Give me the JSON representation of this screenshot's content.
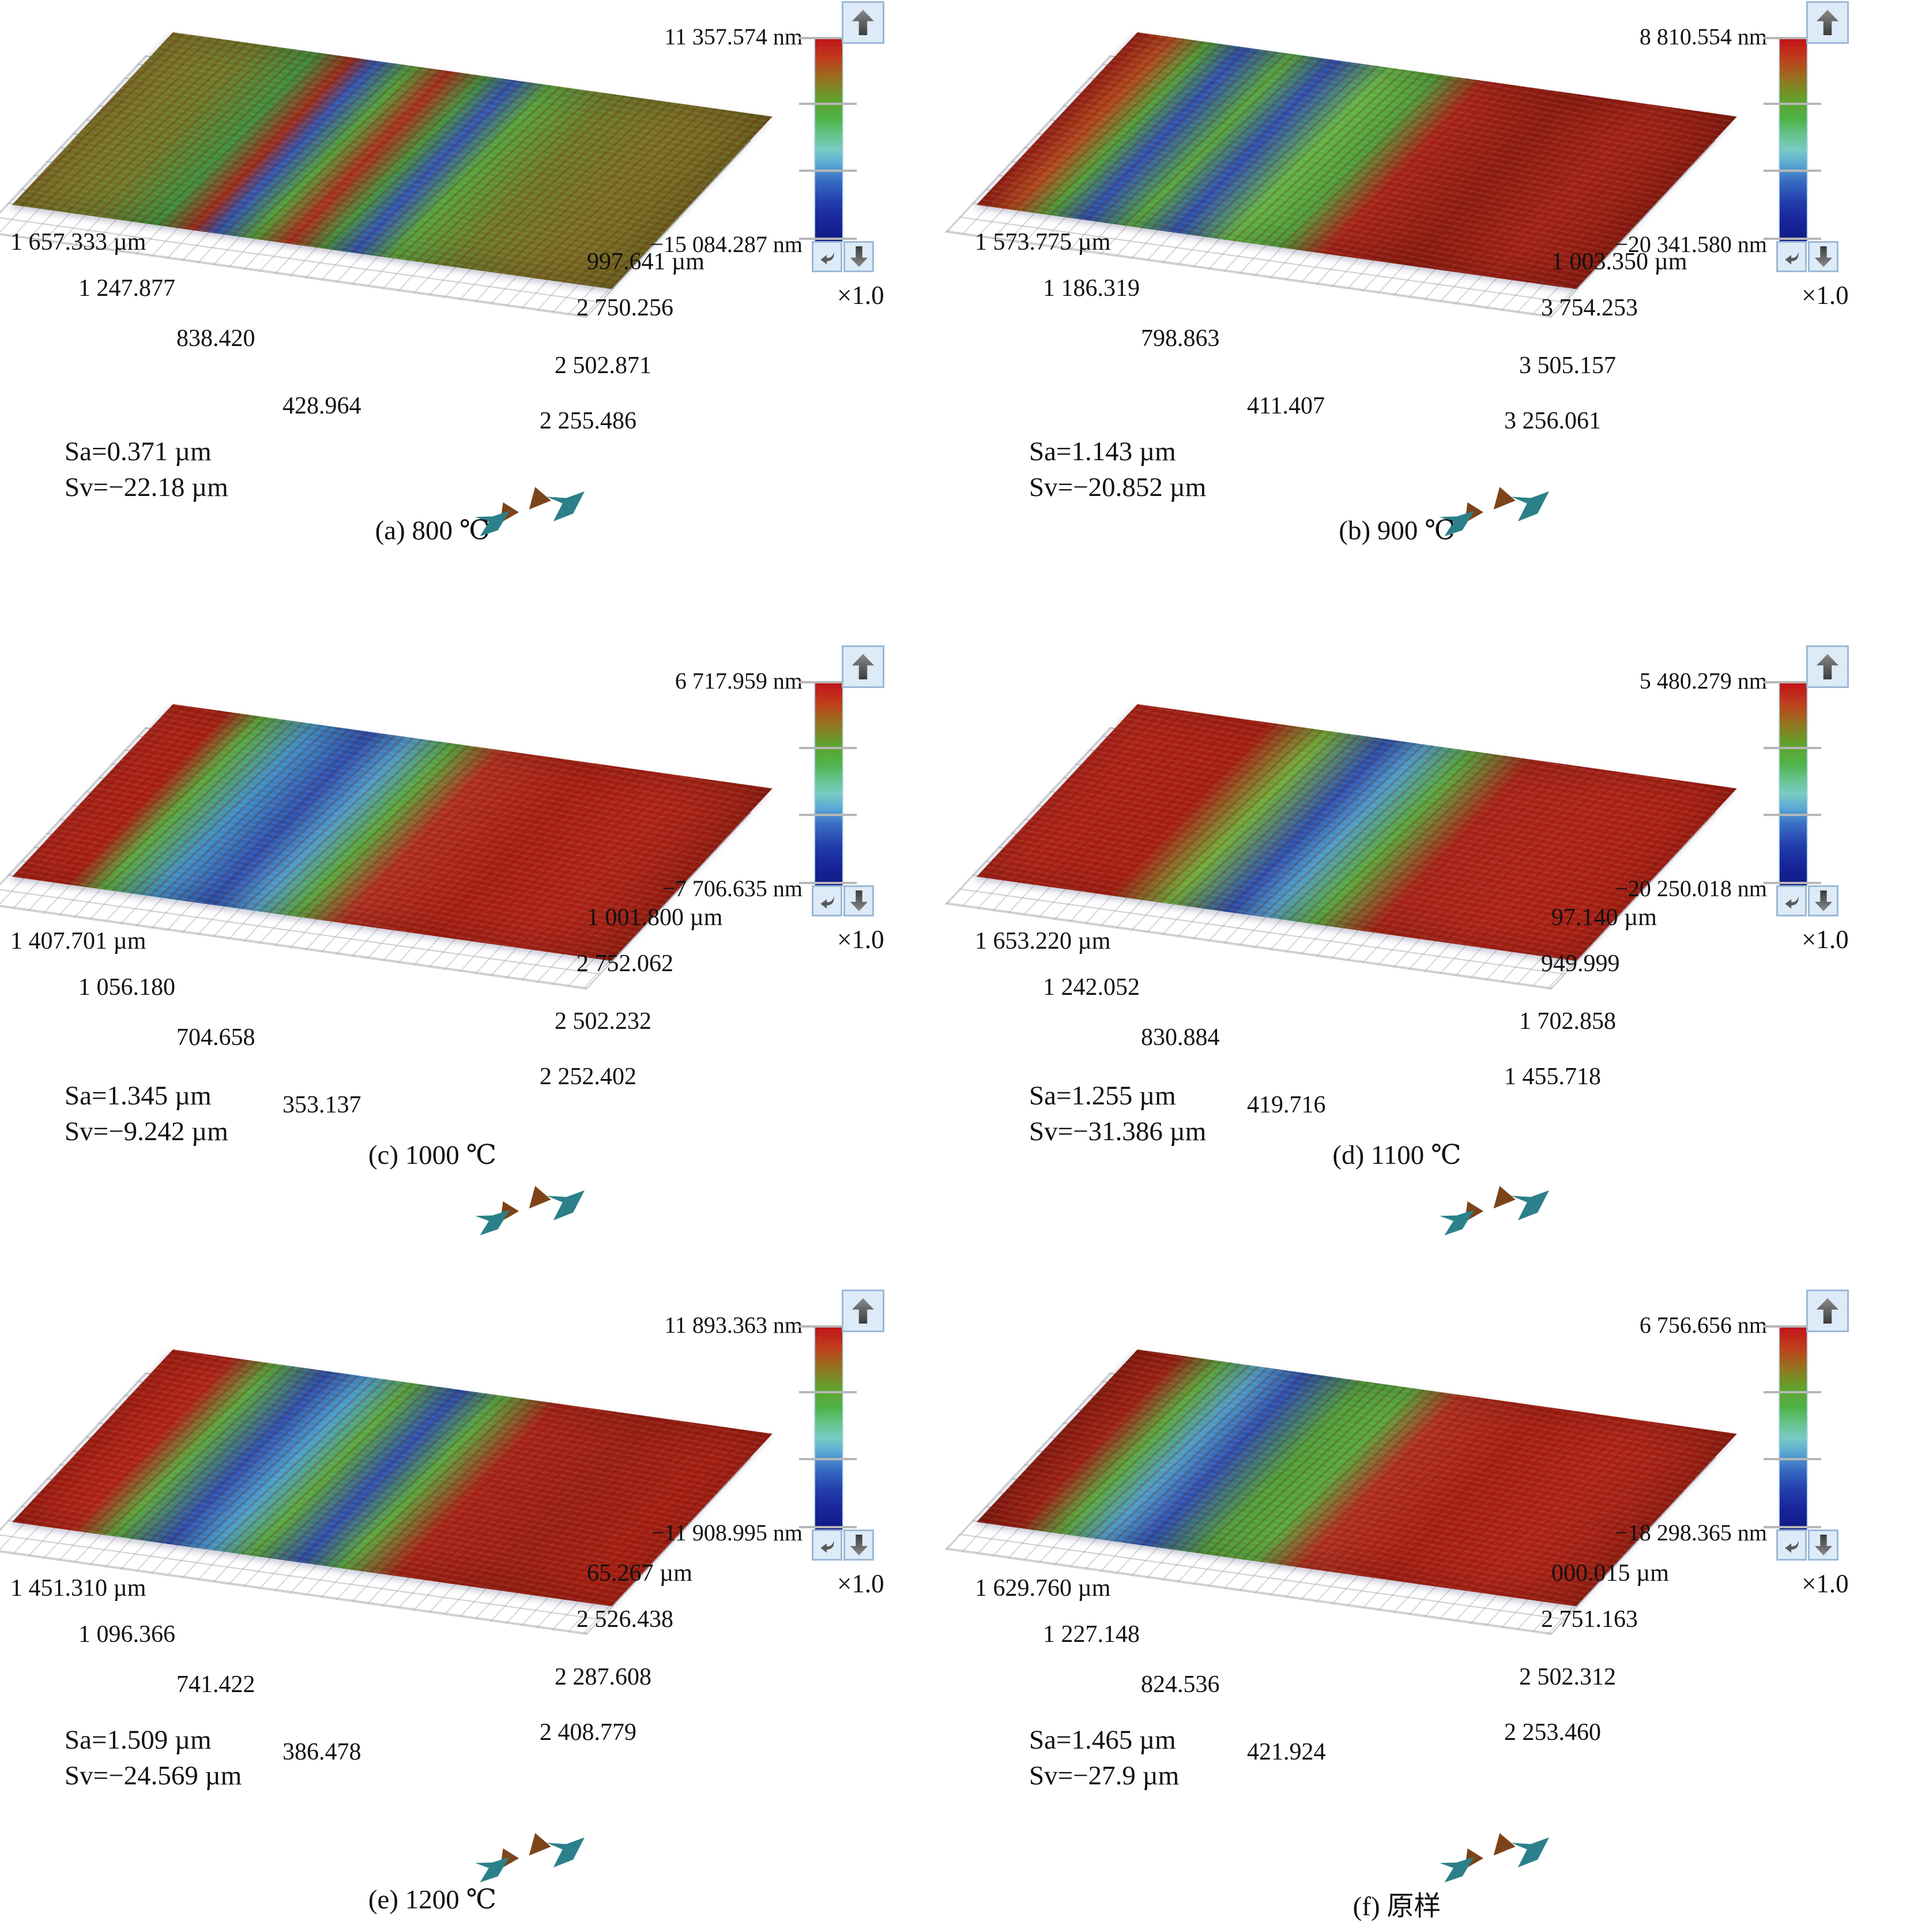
{
  "figure": {
    "kind": "3D surface roughness maps, 2×3 grid"
  },
  "colors": {
    "colorbar_top": "#c1121a",
    "colorbar_middle": "#4fb348",
    "colorbar_bottom": "#111b85",
    "button_background": "#dcebf7",
    "button_border": "#9db9d6",
    "arrow_glyph": "#4a4a4a",
    "orientation_arrow_brown": "#7d4419",
    "orientation_arrow_teal": "#2b8089"
  },
  "panels": [
    {
      "id": "a",
      "caption": "(a) 800 ℃",
      "colorbar": {
        "max": "11 357.574 nm",
        "min": "−15 084.287 nm",
        "zoom": "×1.0"
      },
      "x_axis": [
        "1 657.333 µm",
        "1 247.877",
        "838.420",
        "428.964"
      ],
      "y_axis": [
        "997.641 µm",
        "2 750.256",
        "2 502.871",
        "2 255.486"
      ],
      "stats": {
        "sa": "Sa=0.371 µm",
        "sv": "Sv=−22.18 µm"
      }
    },
    {
      "id": "b",
      "caption": "(b) 900 ℃",
      "colorbar": {
        "max": "8 810.554 nm",
        "min": "−20 341.580 nm",
        "zoom": "×1.0"
      },
      "x_axis": [
        "1 573.775 µm",
        "1 186.319",
        "798.863",
        "411.407"
      ],
      "y_axis": [
        "1 003.350 µm",
        "3 754.253",
        "3 505.157",
        "3 256.061"
      ],
      "stats": {
        "sa": "Sa=1.143 µm",
        "sv": "Sv=−20.852 µm"
      }
    },
    {
      "id": "c",
      "caption": "(c) 1000 ℃",
      "colorbar": {
        "max": "6 717.959 nm",
        "min": "−7 706.635 nm",
        "zoom": "×1.0"
      },
      "x_axis": [
        "1 407.701 µm",
        "1 056.180",
        "704.658",
        "353.137"
      ],
      "y_axis": [
        "1 001.800 µm",
        "2 752.062",
        "2 502.232",
        "2 252.402"
      ],
      "stats": {
        "sa": "Sa=1.345 µm",
        "sv": "Sv=−9.242 µm"
      }
    },
    {
      "id": "d",
      "caption": "(d) 1100 ℃",
      "colorbar": {
        "max": "5 480.279 nm",
        "min": "−20 250.018 nm",
        "zoom": "×1.0"
      },
      "x_axis": [
        "1 653.220 µm",
        "1 242.052",
        "830.884",
        "419.716"
      ],
      "y_axis": [
        "97.140 µm",
        "949.999",
        "1 702.858",
        "1 455.718"
      ],
      "stats": {
        "sa": "Sa=1.255 µm",
        "sv": "Sv=−31.386 µm"
      }
    },
    {
      "id": "e",
      "caption": "(e) 1200 ℃",
      "colorbar": {
        "max": "11 893.363 nm",
        "min": "−11 908.995 nm",
        "zoom": "×1.0"
      },
      "x_axis": [
        "1 451.310 µm",
        "1 096.366",
        "741.422",
        "386.478"
      ],
      "y_axis": [
        "65.267 µm",
        "2 526.438",
        "2 287.608",
        "2 408.779"
      ],
      "stats": {
        "sa": "Sa=1.509 µm",
        "sv": "Sv=−24.569 µm"
      }
    },
    {
      "id": "f",
      "caption": "(f) 原样",
      "colorbar": {
        "max": "6 756.656 nm",
        "min": "−18 298.365 nm",
        "zoom": "×1.0"
      },
      "x_axis": [
        "1 629.760 µm",
        "1 227.148",
        "824.536",
        "421.924"
      ],
      "y_axis": [
        "000.015 µm",
        "2 751.163",
        "2 502.312",
        "2 253.460"
      ],
      "stats": {
        "sa": "Sa=1.465 µm",
        "sv": "Sv=−27.9 µm"
      }
    }
  ],
  "chart_data": [
    {
      "type": "heatmap",
      "subtype": "3d-surface-topography",
      "label": "(a) 800 ℃",
      "z_range_nm": [
        -15084.287,
        11357.574
      ],
      "x_ticks_um": [
        "1 657.333",
        "1 247.877",
        "838.420",
        "428.964"
      ],
      "y_ticks_um": [
        "997.641",
        "2 750.256",
        "2 502.871",
        "2 255.486"
      ],
      "Sa_um": 0.371,
      "Sv_um": -22.18,
      "zoom_factor": "×1.0"
    },
    {
      "type": "heatmap",
      "subtype": "3d-surface-topography",
      "label": "(b) 900 ℃",
      "z_range_nm": [
        -20341.58,
        8810.554
      ],
      "x_ticks_um": [
        "1 573.775",
        "1 186.319",
        "798.863",
        "411.407"
      ],
      "y_ticks_um": [
        "1 003.350",
        "3 754.253",
        "3 505.157",
        "3 256.061"
      ],
      "Sa_um": 1.143,
      "Sv_um": -20.852,
      "zoom_factor": "×1.0"
    },
    {
      "type": "heatmap",
      "subtype": "3d-surface-topography",
      "label": "(c) 1000 ℃",
      "z_range_nm": [
        -7706.635,
        6717.959
      ],
      "x_ticks_um": [
        "1 407.701",
        "1 056.180",
        "704.658",
        "353.137"
      ],
      "y_ticks_um": [
        "1 001.800",
        "2 752.062",
        "2 502.232",
        "2 252.402"
      ],
      "Sa_um": 1.345,
      "Sv_um": -9.242,
      "zoom_factor": "×1.0"
    },
    {
      "type": "heatmap",
      "subtype": "3d-surface-topography",
      "label": "(d) 1100 ℃",
      "z_range_nm": [
        -20250.018,
        5480.279
      ],
      "x_ticks_um": [
        "1 653.220",
        "1 242.052",
        "830.884",
        "419.716"
      ],
      "y_ticks_um": [
        "97.140",
        "949.999",
        "1 702.858",
        "1 455.718"
      ],
      "Sa_um": 1.255,
      "Sv_um": -31.386,
      "zoom_factor": "×1.0"
    },
    {
      "type": "heatmap",
      "subtype": "3d-surface-topography",
      "label": "(e) 1200 ℃",
      "z_range_nm": [
        -11908.995,
        11893.363
      ],
      "x_ticks_um": [
        "1 451.310",
        "1 096.366",
        "741.422",
        "386.478"
      ],
      "y_ticks_um": [
        "65.267",
        "2 526.438",
        "2 287.608",
        "2 408.779"
      ],
      "Sa_um": 1.509,
      "Sv_um": -24.569,
      "zoom_factor": "×1.0"
    },
    {
      "type": "heatmap",
      "subtype": "3d-surface-topography",
      "label": "(f) 原样",
      "z_range_nm": [
        -18298.365,
        6756.656
      ],
      "x_ticks_um": [
        "1 629.760",
        "1 227.148",
        "824.536",
        "421.924"
      ],
      "y_ticks_um": [
        "000.015",
        "2 751.163",
        "2 502.312",
        "2 253.460"
      ],
      "Sa_um": 1.465,
      "Sv_um": -27.9,
      "zoom_factor": "×1.0"
    }
  ]
}
